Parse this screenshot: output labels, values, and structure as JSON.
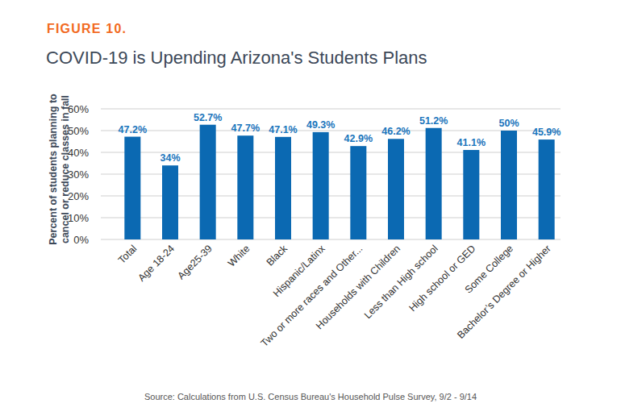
{
  "chart_data": {
    "type": "bar",
    "subtitle": "FIGURE 10.",
    "title": "COVID-19 is Upending Arizona's Students Plans",
    "y_label": [
      "Percent of students planning to",
      "cancel or reduce classes in fall"
    ],
    "source": "Source: Calculations from U.S. Census Bureau's Household Pulse Survey, 9/2 - 9/14",
    "categories": [
      "Total",
      "Age 18-24",
      "Age25-39",
      "White",
      "Black",
      "Hispanic/Latinx",
      "Two or more races and Other...",
      "Households with Children",
      "Less than High school",
      "High school or GED",
      "Some College",
      "Bachelor’s Degree or Higher"
    ],
    "values": [
      47.2,
      34,
      52.7,
      47.7,
      47.1,
      49.3,
      42.9,
      46.2,
      51.2,
      41.1,
      50,
      45.9
    ],
    "value_labels": [
      "47.2%",
      "34%",
      "52.7%",
      "47.7%",
      "47.1%",
      "49.3%",
      "42.9%",
      "46.2%",
      "51.2%",
      "41.1%",
      "50%",
      "45.9%"
    ],
    "color": "#0b69b2",
    "ylim": [
      0,
      60
    ],
    "yticks": [
      {
        "value": 0,
        "label": "0%"
      },
      {
        "value": 10,
        "label": "10%"
      },
      {
        "value": 20,
        "label": "20%"
      },
      {
        "value": 30,
        "label": "30%"
      },
      {
        "value": 40,
        "label": "40%"
      },
      {
        "value": 50,
        "label": "50%"
      },
      {
        "value": 60,
        "label": "60%"
      }
    ],
    "grid": true,
    "data_labels": true
  }
}
